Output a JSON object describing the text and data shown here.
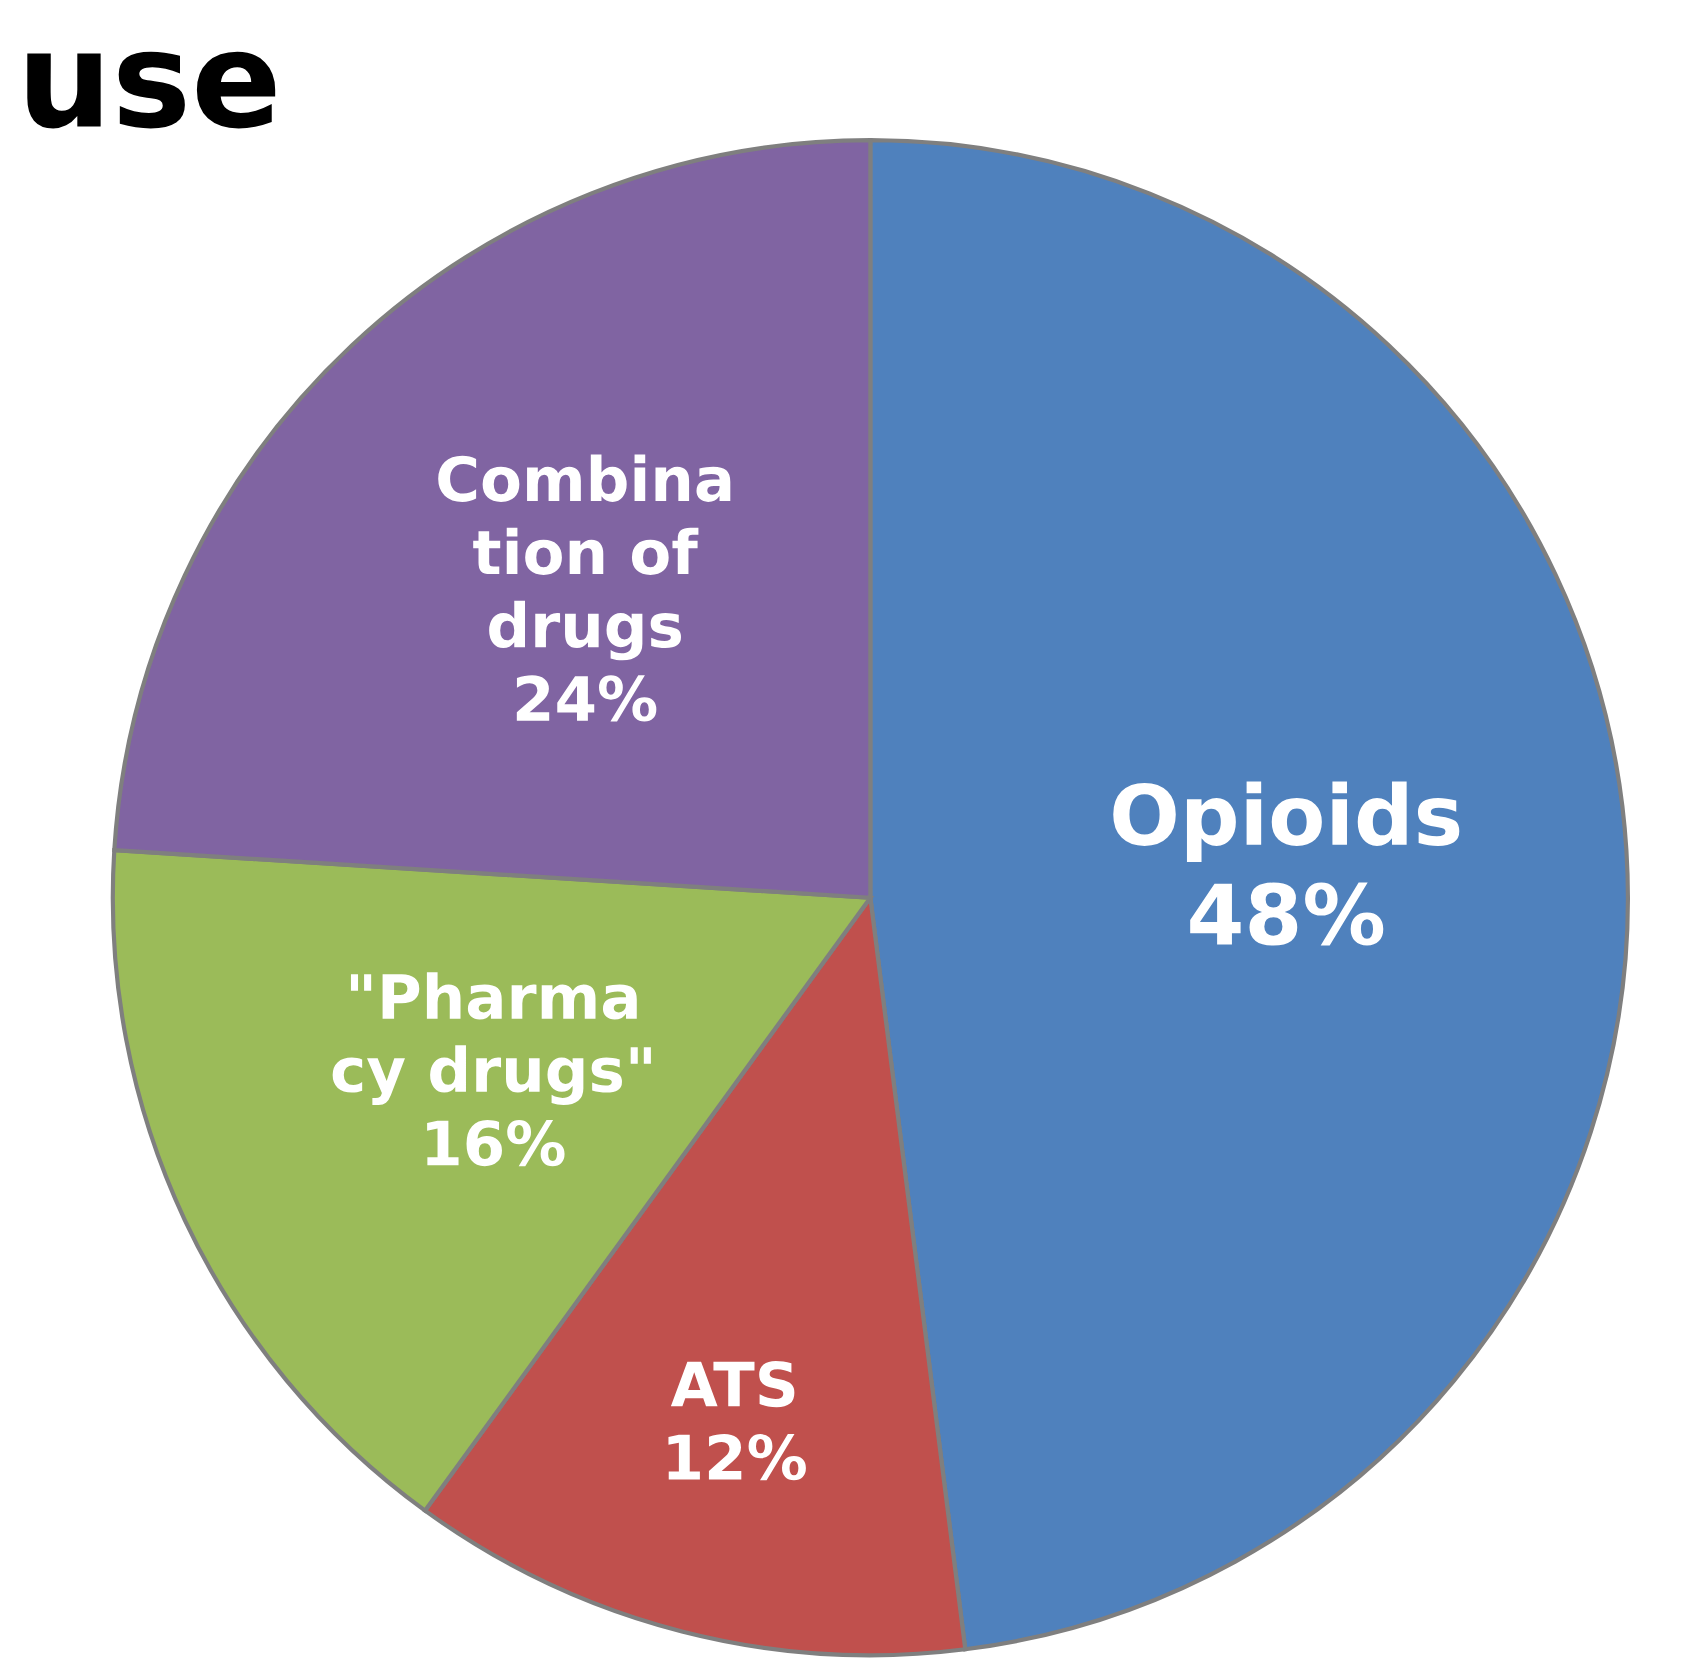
{
  "chart_data": {
    "type": "pie",
    "title": "use",
    "categories": [
      "Opioids",
      "ATS",
      "\"Pharma\ncy drugs\"",
      "Combina\ntion of\ndrugs"
    ],
    "values": [
      48,
      12,
      16,
      24
    ],
    "value_labels": [
      "48%",
      "12%",
      "16%",
      "24%"
    ],
    "colors": [
      "#4f81bd",
      "#c0504d",
      "#9bbb59",
      "#8064a2"
    ]
  }
}
